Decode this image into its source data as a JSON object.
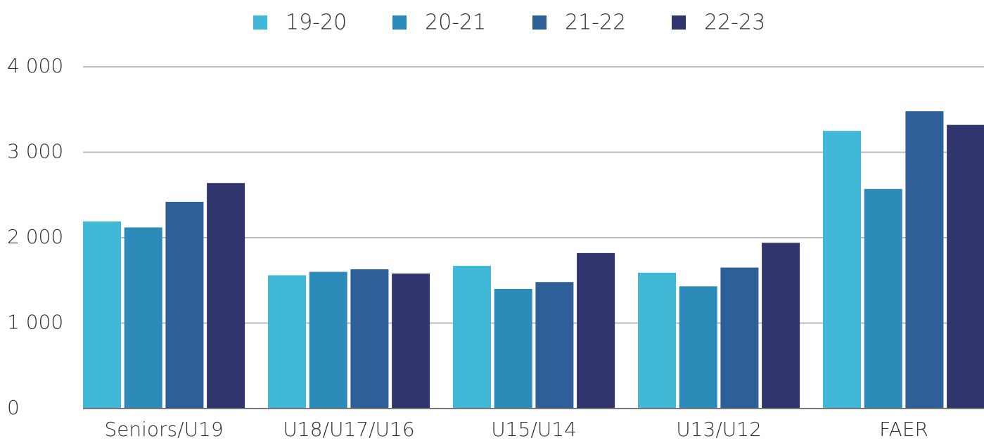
{
  "chart_data": {
    "type": "bar",
    "categories": [
      "Seniors/U19",
      "U18/U17/U16",
      "U15/U14",
      "U13/U12",
      "FAER"
    ],
    "series": [
      {
        "name": "19-20",
        "color": "#41b8d5",
        "values": [
          2190,
          1560,
          1670,
          1590,
          3250
        ]
      },
      {
        "name": "20-21",
        "color": "#2d8bba",
        "values": [
          2120,
          1600,
          1400,
          1430,
          2570
        ]
      },
      {
        "name": "21-22",
        "color": "#2f5f98",
        "values": [
          2420,
          1630,
          1480,
          1650,
          3480
        ]
      },
      {
        "name": "22-23",
        "color": "#31356e",
        "values": [
          2640,
          1580,
          1820,
          1940,
          3320
        ]
      }
    ],
    "ylim": [
      0,
      4000
    ],
    "yticks": [
      0,
      {
        "value": 1000,
        "label": "1 000"
      },
      {
        "value": 2000,
        "label": "2 000"
      },
      {
        "value": 3000,
        "label": "3 000"
      },
      {
        "value": 4000,
        "label": "4 000"
      }
    ],
    "grid": true,
    "legend": "top"
  }
}
